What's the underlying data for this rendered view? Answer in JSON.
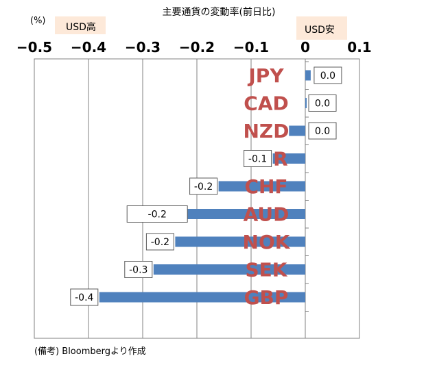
{
  "chart_data": {
    "type": "bar",
    "orientation": "horizontal",
    "title": "主要通貨の変動率(前日比)",
    "unit_label": "(%)",
    "left_side_label": "USD高",
    "right_side_label": "USD安",
    "categories": [
      "JPY",
      "CAD",
      "NZD",
      "EUR",
      "CHF",
      "AUD",
      "NOK",
      "SEK",
      "GBP"
    ],
    "values": [
      0.01,
      0.0,
      -0.03,
      -0.06,
      -0.16,
      -0.22,
      -0.24,
      -0.28,
      -0.38
    ],
    "data_labels": [
      "0.0",
      "0.0",
      "0.0",
      "-0.1",
      "-0.2",
      "-0.2",
      "-0.2",
      "-0.3",
      "-0.4"
    ],
    "xlim": [
      -0.5,
      0.1
    ],
    "x_ticks": [
      "−0.5",
      "−0.4",
      "−0.3",
      "−0.2",
      "−0.1",
      "0",
      "0.1"
    ],
    "x_tick_values": [
      -0.5,
      -0.4,
      -0.3,
      -0.2,
      -0.1,
      0,
      0.1
    ],
    "grid": true,
    "bar_color": "#4F81BD",
    "category_label_color": "#C0504D",
    "side_label_bg": "#FDE9D9",
    "note": "(備考) Bloombergより作成"
  }
}
